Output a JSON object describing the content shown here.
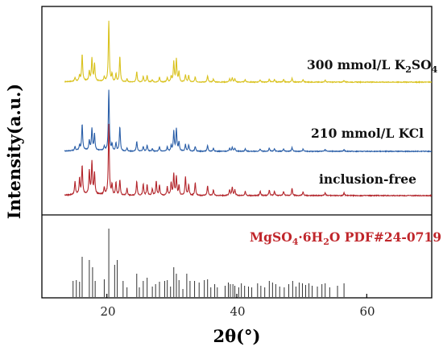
{
  "chart_data": {
    "type": "line",
    "xlabel": "2θ(°)",
    "ylabel": "Intensity(a.u.)",
    "xlim": [
      10,
      70
    ],
    "x_ticks": [
      "20",
      "40",
      "60"
    ],
    "series": [
      {
        "name": "300 mmol/L K",
        "name_sub1": "2",
        "name_mid": "SO",
        "name_sub2": "4",
        "color": "#d9c21e",
        "peaks": [
          [
            15.1,
            0.06
          ],
          [
            15.8,
            0.09
          ],
          [
            16.2,
            0.43
          ],
          [
            17.3,
            0.15
          ],
          [
            17.7,
            0.37
          ],
          [
            18.1,
            0.28
          ],
          [
            19.6,
            0.07
          ],
          [
            20.3,
            1.0
          ],
          [
            20.8,
            0.12
          ],
          [
            21.4,
            0.13
          ],
          [
            22.0,
            0.42
          ],
          [
            23.1,
            0.05
          ],
          [
            24.6,
            0.17
          ],
          [
            25.6,
            0.09
          ],
          [
            26.2,
            0.1
          ],
          [
            27.0,
            0.04
          ],
          [
            28.1,
            0.08
          ],
          [
            29.3,
            0.07
          ],
          [
            29.9,
            0.09
          ],
          [
            30.3,
            0.33
          ],
          [
            30.7,
            0.37
          ],
          [
            31.1,
            0.16
          ],
          [
            32.1,
            0.12
          ],
          [
            32.6,
            0.11
          ],
          [
            33.6,
            0.08
          ],
          [
            35.5,
            0.1
          ],
          [
            36.4,
            0.05
          ],
          [
            38.9,
            0.05
          ],
          [
            39.3,
            0.07
          ],
          [
            39.7,
            0.05
          ],
          [
            41.3,
            0.04
          ],
          [
            43.6,
            0.04
          ],
          [
            45.0,
            0.05
          ],
          [
            45.8,
            0.04
          ],
          [
            47.2,
            0.04
          ],
          [
            48.5,
            0.06
          ],
          [
            50.2,
            0.04
          ],
          [
            53.6,
            0.03
          ],
          [
            56.5,
            0.03
          ]
        ]
      },
      {
        "name": "210 mmol/L KCl",
        "color": "#2b5fa8",
        "peaks": [
          [
            15.1,
            0.06
          ],
          [
            15.8,
            0.08
          ],
          [
            16.2,
            0.42
          ],
          [
            17.3,
            0.15
          ],
          [
            17.7,
            0.35
          ],
          [
            18.1,
            0.26
          ],
          [
            19.6,
            0.07
          ],
          [
            20.3,
            1.0
          ],
          [
            20.8,
            0.11
          ],
          [
            21.4,
            0.13
          ],
          [
            22.0,
            0.4
          ],
          [
            23.1,
            0.05
          ],
          [
            24.6,
            0.16
          ],
          [
            25.6,
            0.08
          ],
          [
            26.2,
            0.1
          ],
          [
            27.0,
            0.04
          ],
          [
            28.1,
            0.07
          ],
          [
            29.3,
            0.07
          ],
          [
            29.9,
            0.09
          ],
          [
            30.3,
            0.32
          ],
          [
            30.7,
            0.36
          ],
          [
            31.1,
            0.15
          ],
          [
            32.1,
            0.11
          ],
          [
            32.6,
            0.1
          ],
          [
            33.6,
            0.08
          ],
          [
            35.5,
            0.09
          ],
          [
            36.4,
            0.05
          ],
          [
            38.9,
            0.05
          ],
          [
            39.3,
            0.07
          ],
          [
            39.7,
            0.05
          ],
          [
            41.3,
            0.04
          ],
          [
            43.6,
            0.04
          ],
          [
            45.0,
            0.05
          ],
          [
            45.8,
            0.04
          ],
          [
            47.2,
            0.04
          ],
          [
            48.5,
            0.06
          ],
          [
            50.2,
            0.04
          ],
          [
            53.6,
            0.03
          ],
          [
            56.5,
            0.03
          ]
        ]
      },
      {
        "name": "inclusion-free",
        "color": "#b3262c",
        "peaks": [
          [
            15.1,
            0.18
          ],
          [
            15.8,
            0.22
          ],
          [
            16.2,
            0.4
          ],
          [
            17.3,
            0.32
          ],
          [
            17.7,
            0.45
          ],
          [
            18.1,
            0.3
          ],
          [
            19.6,
            0.1
          ],
          [
            20.3,
            1.0
          ],
          [
            20.8,
            0.14
          ],
          [
            21.4,
            0.18
          ],
          [
            22.0,
            0.22
          ],
          [
            23.1,
            0.1
          ],
          [
            24.6,
            0.2
          ],
          [
            25.6,
            0.16
          ],
          [
            26.2,
            0.15
          ],
          [
            27.0,
            0.09
          ],
          [
            27.6,
            0.2
          ],
          [
            28.1,
            0.14
          ],
          [
            29.3,
            0.12
          ],
          [
            29.9,
            0.18
          ],
          [
            30.3,
            0.3
          ],
          [
            30.7,
            0.26
          ],
          [
            31.1,
            0.14
          ],
          [
            32.1,
            0.26
          ],
          [
            32.6,
            0.15
          ],
          [
            33.6,
            0.18
          ],
          [
            35.5,
            0.14
          ],
          [
            36.4,
            0.08
          ],
          [
            38.9,
            0.08
          ],
          [
            39.3,
            0.12
          ],
          [
            39.7,
            0.08
          ],
          [
            41.3,
            0.06
          ],
          [
            43.6,
            0.06
          ],
          [
            45.0,
            0.08
          ],
          [
            45.8,
            0.06
          ],
          [
            47.2,
            0.06
          ],
          [
            48.5,
            0.1
          ],
          [
            50.2,
            0.05
          ],
          [
            53.6,
            0.04
          ],
          [
            56.5,
            0.04
          ]
        ]
      }
    ],
    "reference": {
      "label_main": "MgSO",
      "label_sub": "4",
      "label_rest": "·6H",
      "label_sub2": "2",
      "label_end": "O  PDF#24-0719",
      "color": "#333333",
      "lines": [
        [
          14.8,
          0.2
        ],
        [
          15.3,
          0.21
        ],
        [
          15.8,
          0.19
        ],
        [
          16.2,
          0.5
        ],
        [
          17.3,
          0.46
        ],
        [
          17.8,
          0.37
        ],
        [
          18.2,
          0.2
        ],
        [
          19.6,
          0.22
        ],
        [
          20.3,
          0.85
        ],
        [
          21.2,
          0.4
        ],
        [
          21.6,
          0.46
        ],
        [
          22.5,
          0.2
        ],
        [
          23.1,
          0.12
        ],
        [
          24.6,
          0.29
        ],
        [
          25.0,
          0.12
        ],
        [
          25.6,
          0.2
        ],
        [
          26.2,
          0.24
        ],
        [
          27.0,
          0.13
        ],
        [
          27.5,
          0.16
        ],
        [
          28.1,
          0.19
        ],
        [
          28.9,
          0.2
        ],
        [
          29.3,
          0.21
        ],
        [
          29.8,
          0.13
        ],
        [
          30.3,
          0.37
        ],
        [
          30.7,
          0.29
        ],
        [
          31.1,
          0.21
        ],
        [
          31.7,
          0.1
        ],
        [
          32.3,
          0.29
        ],
        [
          32.8,
          0.2
        ],
        [
          33.5,
          0.2
        ],
        [
          34.2,
          0.18
        ],
        [
          35.0,
          0.21
        ],
        [
          35.5,
          0.22
        ],
        [
          36.0,
          0.12
        ],
        [
          36.6,
          0.16
        ],
        [
          37.0,
          0.12
        ],
        [
          38.2,
          0.14
        ],
        [
          38.7,
          0.18
        ],
        [
          39.0,
          0.16
        ],
        [
          39.4,
          0.16
        ],
        [
          39.7,
          0.14
        ],
        [
          40.3,
          0.12
        ],
        [
          40.7,
          0.17
        ],
        [
          41.2,
          0.14
        ],
        [
          41.8,
          0.13
        ],
        [
          42.3,
          0.12
        ],
        [
          43.2,
          0.17
        ],
        [
          43.7,
          0.14
        ],
        [
          44.3,
          0.12
        ],
        [
          45.0,
          0.2
        ],
        [
          45.5,
          0.18
        ],
        [
          46.0,
          0.16
        ],
        [
          46.6,
          0.13
        ],
        [
          47.3,
          0.12
        ],
        [
          48.0,
          0.16
        ],
        [
          48.6,
          0.2
        ],
        [
          49.1,
          0.13
        ],
        [
          49.6,
          0.18
        ],
        [
          50.1,
          0.17
        ],
        [
          50.6,
          0.15
        ],
        [
          51.1,
          0.17
        ],
        [
          51.6,
          0.14
        ],
        [
          52.4,
          0.13
        ],
        [
          53.1,
          0.16
        ],
        [
          53.6,
          0.17
        ],
        [
          54.3,
          0.12
        ],
        [
          55.5,
          0.14
        ],
        [
          56.5,
          0.17
        ]
      ]
    }
  }
}
